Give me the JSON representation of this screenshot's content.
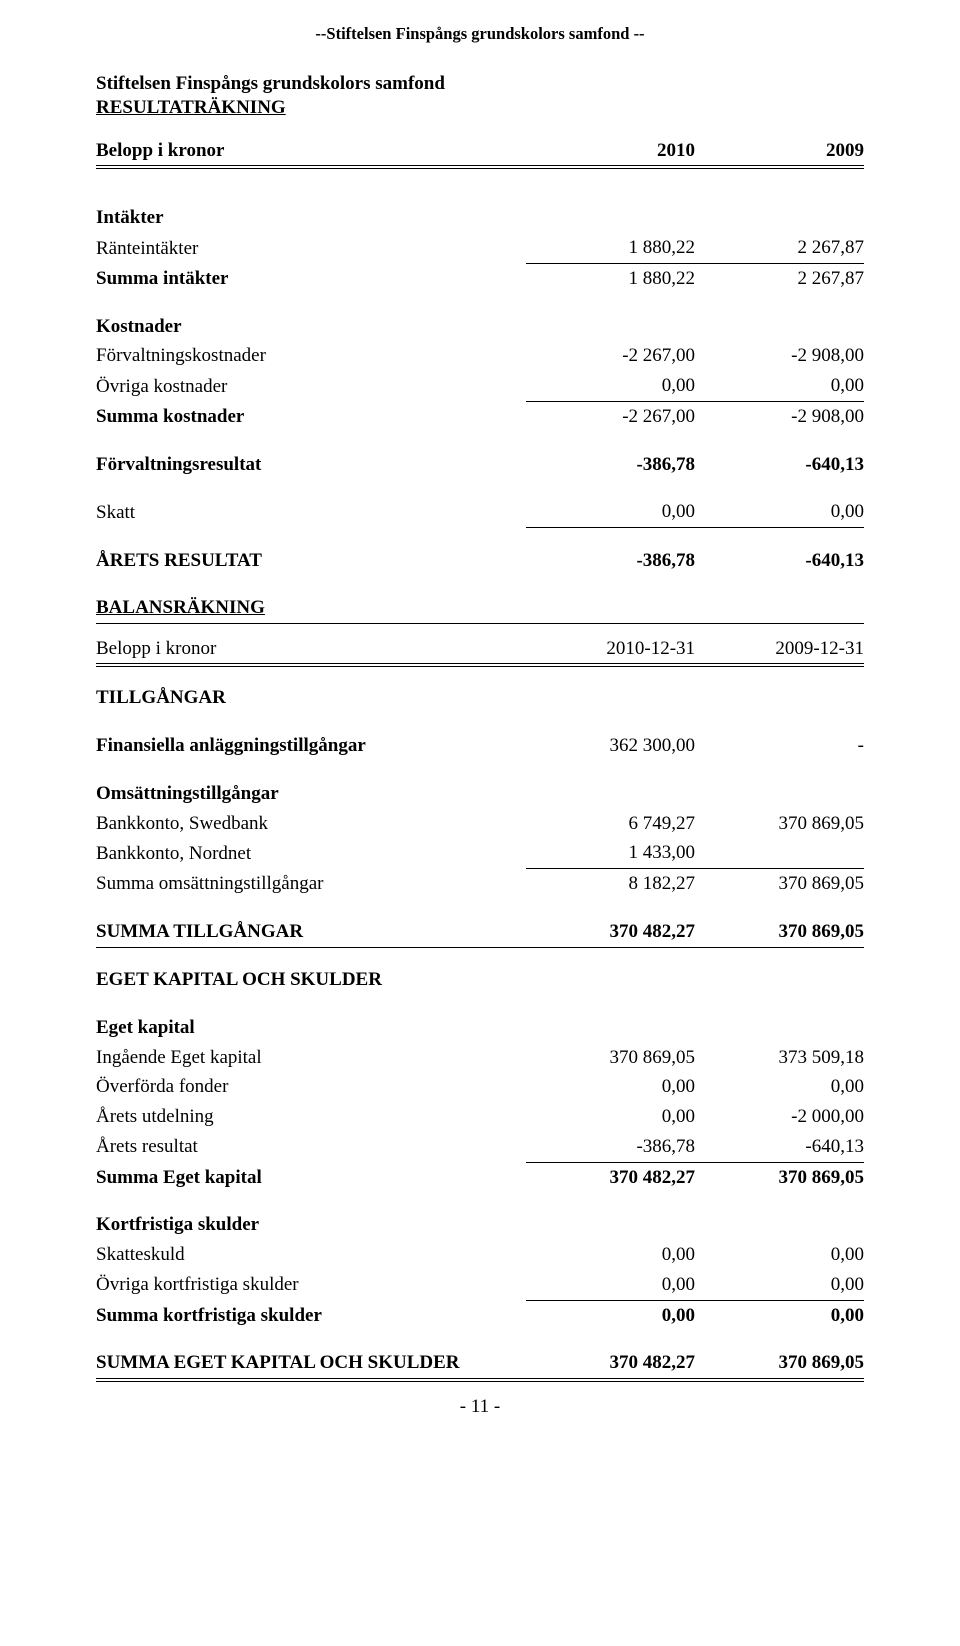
{
  "topHeader": "--Stiftelsen Finspångs grundskolors samfond --",
  "title": "Stiftelsen Finspångs grundskolors samfond",
  "subtitle": "RESULTATRÄKNING",
  "colHeaderRow": {
    "label": "Belopp i kronor",
    "c1": "2010",
    "c2": "2009"
  },
  "sections": {
    "intakter": {
      "header": "Intäkter",
      "rows": [
        {
          "label": "Ränteintäkter",
          "c1": "1 880,22",
          "c2": "2 267,87"
        }
      ],
      "sum": {
        "label": "Summa intäkter",
        "c1": "1 880,22",
        "c2": "2 267,87"
      }
    },
    "kostnader": {
      "header": "Kostnader",
      "rows": [
        {
          "label": "Förvaltningskostnader",
          "c1": "-2 267,00",
          "c2": "-2 908,00"
        },
        {
          "label": "Övriga kostnader",
          "c1": "0,00",
          "c2": "0,00"
        }
      ],
      "sum": {
        "label": "Summa kostnader",
        "c1": "-2 267,00",
        "c2": "-2 908,00"
      }
    },
    "forvRes": {
      "label": "Förvaltningsresultat",
      "c1": "-386,78",
      "c2": "-640,13"
    },
    "skatt": {
      "label": "Skatt",
      "c1": "0,00",
      "c2": "0,00"
    },
    "arets": {
      "label": "ÅRETS RESULTAT",
      "c1": "-386,78",
      "c2": "-640,13"
    }
  },
  "balansHeader": "BALANSRÄKNING",
  "balansColRow": {
    "label": "Belopp i kronor",
    "c1": "2010-12-31",
    "c2": "2009-12-31"
  },
  "tillgangarHeader": "TILLGÅNGAR",
  "finAnl": {
    "label": "Finansiella anläggningstillgångar",
    "c1": "362 300,00",
    "c2": "-"
  },
  "oms": {
    "header": "Omsättningstillgångar",
    "rows": [
      {
        "label": "Bankkonto, Swedbank",
        "c1": "6 749,27",
        "c2": "370 869,05"
      },
      {
        "label": "Bankkonto, Nordnet",
        "c1": "1 433,00",
        "c2": ""
      }
    ],
    "sum": {
      "label": "Summa omsättningstillgångar",
      "c1": "8 182,27",
      "c2": "370 869,05"
    }
  },
  "summaTill": {
    "label": "SUMMA TILLGÅNGAR",
    "c1": "370 482,27",
    "c2": "370 869,05"
  },
  "ekHeader": "EGET KAPITAL OCH SKULDER",
  "egetKap": {
    "header": "Eget kapital",
    "rows": [
      {
        "label": "Ingående Eget kapital",
        "c1": "370 869,05",
        "c2": "373 509,18"
      },
      {
        "label": "Överförda fonder",
        "c1": "0,00",
        "c2": "0,00"
      },
      {
        "label": "Årets utdelning",
        "c1": "0,00",
        "c2": "-2 000,00"
      },
      {
        "label": "Årets resultat",
        "c1": "-386,78",
        "c2": "-640,13"
      }
    ],
    "sum": {
      "label": "Summa Eget kapital",
      "c1": "370 482,27",
      "c2": "370 869,05"
    }
  },
  "kortSk": {
    "header": "Kortfristiga skulder",
    "rows": [
      {
        "label": "Skatteskuld",
        "c1": "0,00",
        "c2": "0,00"
      },
      {
        "label": "Övriga kortfristiga skulder",
        "c1": "0,00",
        "c2": "0,00"
      }
    ],
    "sum": {
      "label": "Summa kortfristiga skulder",
      "c1": "0,00",
      "c2": "0,00"
    }
  },
  "summaEk": {
    "label": "SUMMA EGET KAPITAL OCH SKULDER",
    "c1": "370 482,27",
    "c2": "370 869,05"
  },
  "footer": "- 11 -"
}
